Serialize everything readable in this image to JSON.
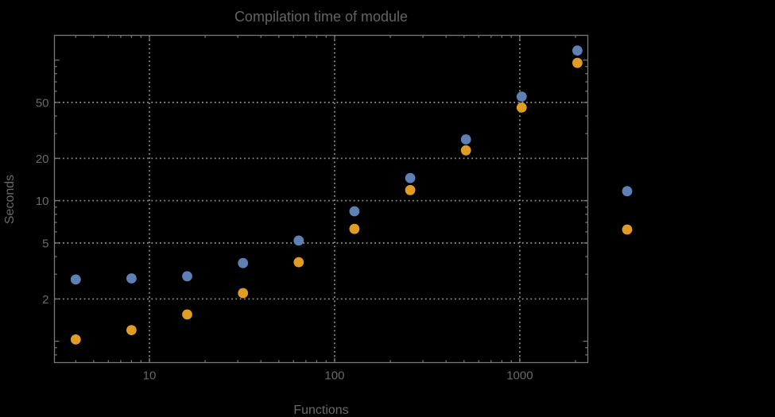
{
  "chart_data": {
    "type": "scatter",
    "title": "Compilation time of module",
    "xlabel": "Functions",
    "ylabel": "Seconds",
    "x_scale": "log",
    "y_scale": "log",
    "xlim": [
      3.07,
      2330
    ],
    "ylim": [
      0.705,
      150
    ],
    "grid": "dotted gray lines at labeled major ticks",
    "legend_position": "right of plot frame, marker dots only (labels not visible)",
    "x": [
      4,
      8,
      16,
      32,
      64,
      128,
      256,
      512,
      1024,
      2048
    ],
    "series": [
      {
        "name": "series-1-blue",
        "color": "#5E81B5",
        "values": [
          2.75,
          2.8,
          2.9,
          3.6,
          5.2,
          8.4,
          14.5,
          27.3,
          55,
          117
        ]
      },
      {
        "name": "series-2-orange",
        "color": "#E19C24",
        "values": [
          1.03,
          1.2,
          1.55,
          2.2,
          3.65,
          6.3,
          11.9,
          22.8,
          46,
          95.5
        ]
      }
    ],
    "x_tick_values": [
      10,
      100,
      1000
    ],
    "x_tick_labels": [
      "10",
      "100",
      "1000"
    ],
    "y_tick_values": [
      2,
      5,
      10,
      20,
      50
    ],
    "y_tick_labels": [
      "2",
      "5",
      "10",
      "20",
      "50"
    ],
    "y_unlabeled_major_ticks": [
      1,
      100
    ]
  },
  "colors": {
    "background": "#000000",
    "frame": "#787878",
    "grid": "#8a8a8a",
    "text": "#696969",
    "series1": "#5E81B5",
    "series2": "#E19C24"
  }
}
